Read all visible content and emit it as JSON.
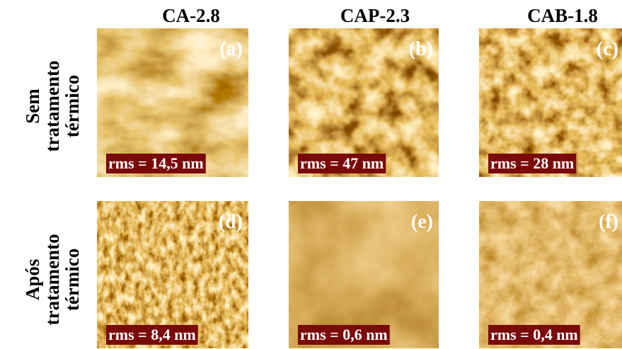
{
  "column_headers": [
    "CA-2.8",
    "CAP-2.3",
    "CAB-1.8"
  ],
  "row_labels": [
    {
      "lines": [
        "Sem",
        "tratamento",
        "térmico"
      ]
    },
    {
      "lines": [
        "Após",
        "tratamento",
        "térmico"
      ]
    }
  ],
  "panels": [
    {
      "label": "(a)",
      "rms": "rms = 14,5 nm"
    },
    {
      "label": "(b)",
      "rms": "rms = 47 nm"
    },
    {
      "label": "(c)",
      "rms": "rms = 28 nm"
    },
    {
      "label": "(d)",
      "rms": "rms = 8,4 nm"
    },
    {
      "label": "(e)",
      "rms": "rms = 0,6 nm"
    },
    {
      "label": "(f)",
      "rms": "rms = 0,4 nm"
    }
  ]
}
